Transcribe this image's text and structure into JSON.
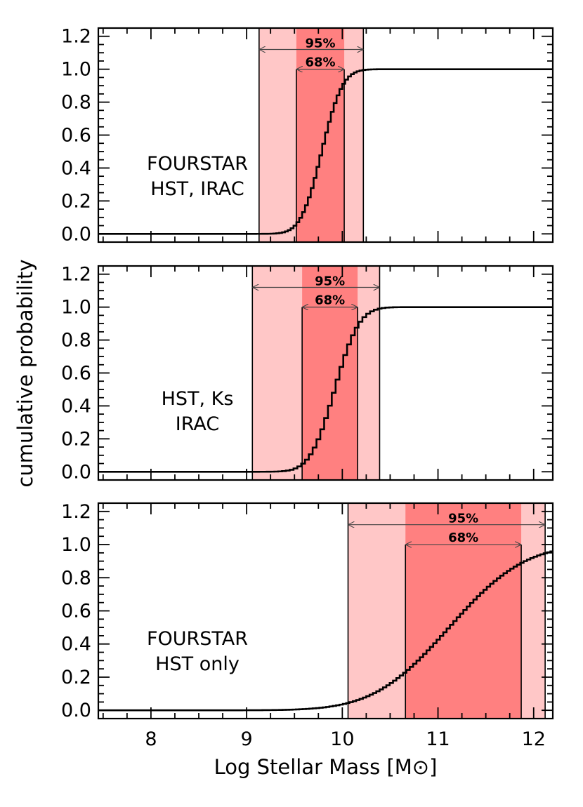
{
  "chart_data": {
    "type": "line",
    "xlabel": "Log Stellar Mass [M⊙]",
    "ylabel": "cumulative probability",
    "xlim": [
      7.45,
      12.2
    ],
    "ylim": [
      -0.05,
      1.25
    ],
    "xticks": [
      8,
      9,
      10,
      11,
      12
    ],
    "yticks": [
      0.0,
      0.2,
      0.4,
      0.6,
      0.8,
      1.0,
      1.2
    ],
    "panels": [
      {
        "label_lines": [
          "FOURSTAR",
          "HST, IRAC"
        ],
        "ci68": [
          9.52,
          10.02
        ],
        "ci95": [
          9.13,
          10.22
        ],
        "ci68_label": "68%",
        "ci95_label": "95%",
        "cdf": {
          "type": "normal",
          "mu": 9.77,
          "sigma": 0.17,
          "step": 0.03
        }
      },
      {
        "label_lines": [
          "HST, Ks",
          "IRAC"
        ],
        "ci68": [
          9.58,
          10.16
        ],
        "ci95": [
          9.06,
          10.39
        ],
        "ci68_label": "68%",
        "ci95_label": "95%",
        "cdf": {
          "type": "normal",
          "mu": 9.9,
          "sigma": 0.2,
          "step": 0.04
        }
      },
      {
        "label_lines": [
          "FOURSTAR",
          "HST only"
        ],
        "ci68": [
          10.66,
          11.87
        ],
        "ci95": [
          10.06,
          12.12
        ],
        "ci68_label": "68%",
        "ci95_label": "95%",
        "cdf": {
          "type": "normal",
          "mu": 11.1,
          "sigma": 0.62,
          "step": 0.035
        }
      }
    ]
  },
  "colors": {
    "ci95_fill": "#ffc7c7",
    "ci68_fill": "#ff8080",
    "line": "#000000",
    "arrow": "#444444"
  }
}
